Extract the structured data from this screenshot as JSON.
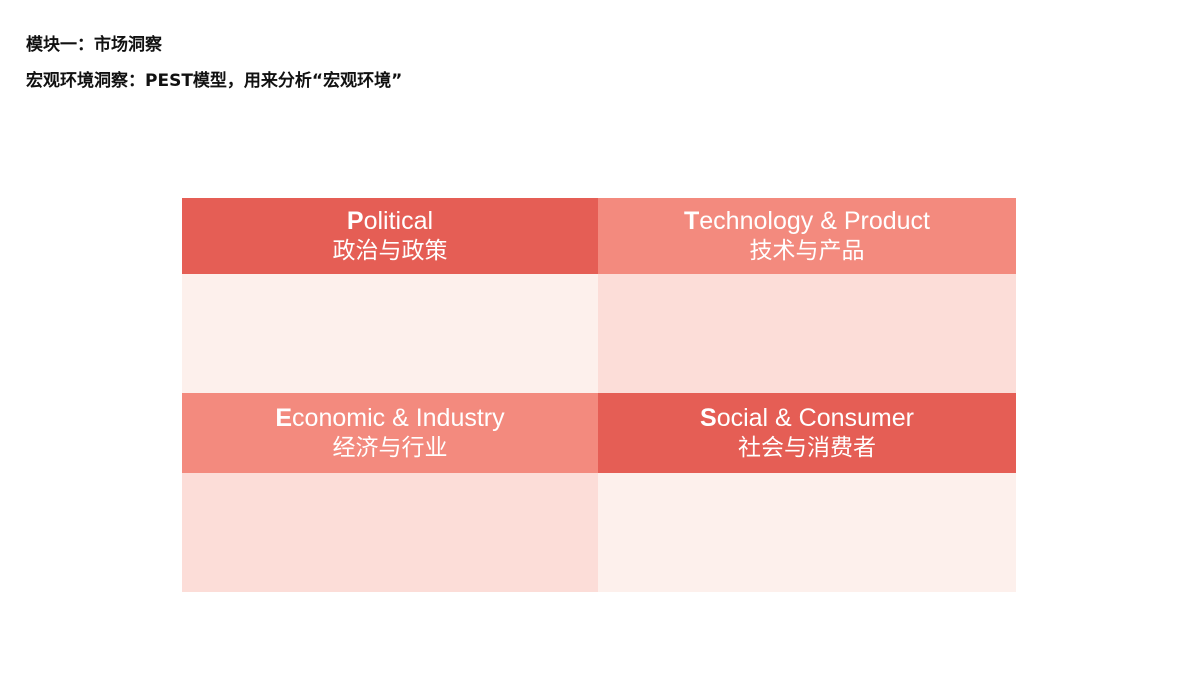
{
  "heading": {
    "line1": "模块一：市场洞察",
    "line2": "宏观环境洞察：PEST模型，用来分析“宏观环境”"
  },
  "pest": [
    {
      "initial": "P",
      "rest": "olitical",
      "zh": "政治与政策",
      "tone": "dark"
    },
    {
      "initial": "T",
      "rest": "echnology & Product",
      "zh": "技术与产品",
      "tone": "light"
    },
    {
      "initial": "E",
      "rest": "conomic & Industry",
      "zh": "经济与行业",
      "tone": "light"
    },
    {
      "initial": "S",
      "rest": "ocial & Consumer",
      "zh": "社会与消费者",
      "tone": "dark"
    }
  ],
  "colors": {
    "dark": "#E55E55",
    "light": "#F38A7E",
    "pale": "#FDF0EC",
    "pink": "#FCDDD8"
  }
}
